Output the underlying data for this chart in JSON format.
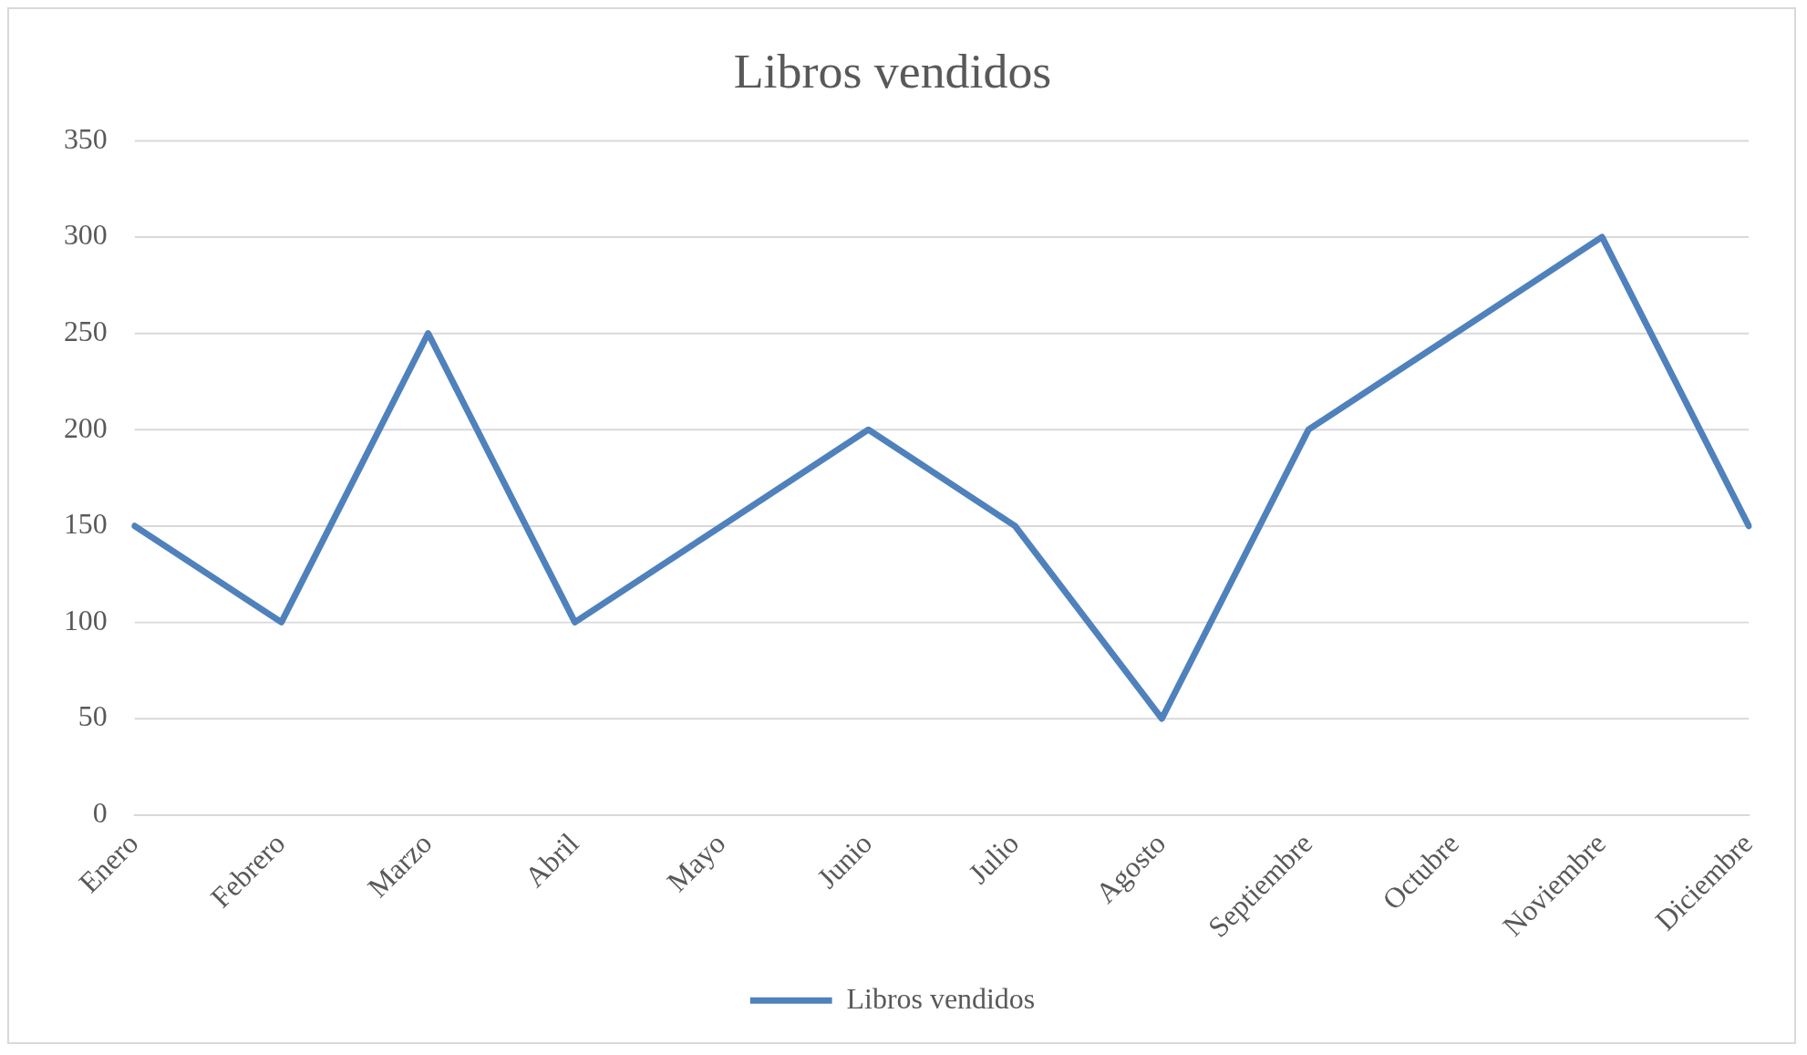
{
  "chart_data": {
    "type": "line",
    "title": "Libros vendidos",
    "categories": [
      "Enero",
      "Febrero",
      "Marzo",
      "Abril",
      "Mayo",
      "Junio",
      "Julio",
      "Agosto",
      "Septiembre",
      "Octubre",
      "Noviembre",
      "Diciembre"
    ],
    "series": [
      {
        "name": "Libros vendidos",
        "color": "#4f81bd",
        "values": [
          150,
          100,
          250,
          100,
          150,
          200,
          150,
          50,
          200,
          250,
          300,
          150
        ]
      }
    ],
    "ylim": [
      0,
      350
    ],
    "yticks": [
      0,
      50,
      100,
      150,
      200,
      250,
      300,
      350
    ],
    "grid": "y",
    "legend": "bottom",
    "marker": "none",
    "line_style": "solid"
  }
}
